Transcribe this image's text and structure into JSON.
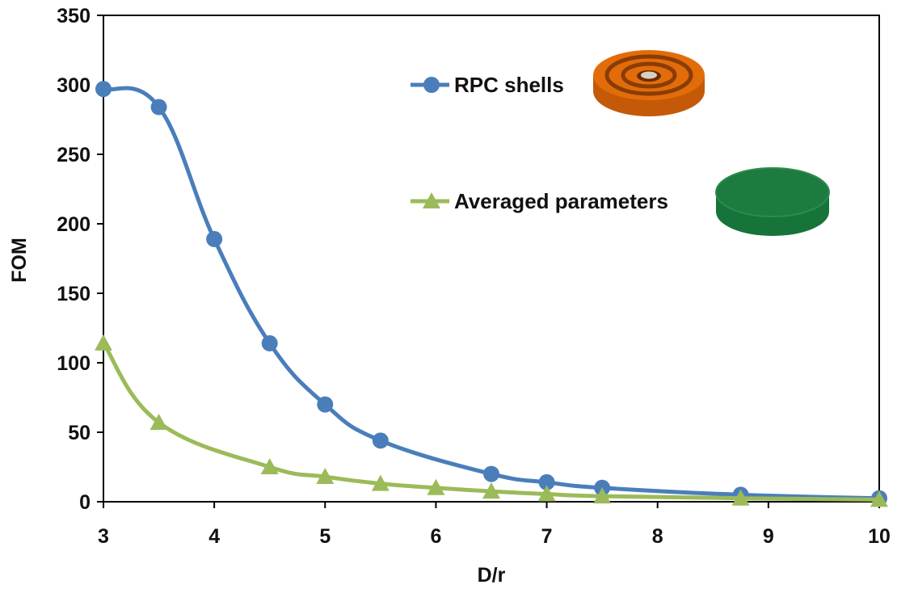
{
  "chart_data": {
    "type": "line",
    "xlabel": "D/r",
    "ylabel": "FOM",
    "xlim": [
      3,
      10
    ],
    "ylim": [
      0,
      350
    ],
    "xticks": [
      3,
      4,
      5,
      6,
      7,
      8,
      9,
      10
    ],
    "yticks": [
      0,
      50,
      100,
      150,
      200,
      250,
      300,
      350
    ],
    "grid": false,
    "legend_position": "top-right",
    "series": [
      {
        "name": "RPC shells",
        "marker": "circle",
        "color": "#4a7ebb",
        "x": [
          3,
          3.5,
          4,
          4.5,
          5,
          5.5,
          6.5,
          7,
          7.5,
          8.75,
          10
        ],
        "y": [
          297,
          284,
          189,
          114,
          70,
          44,
          20,
          14,
          10,
          5,
          2.5
        ]
      },
      {
        "name": "Averaged parameters",
        "marker": "triangle",
        "color": "#9bbb59",
        "x": [
          3,
          3.5,
          4.5,
          5,
          5.5,
          6,
          6.5,
          7,
          7.5,
          8.75,
          10
        ],
        "y": [
          114,
          57,
          25,
          18,
          13,
          10,
          7.5,
          5.5,
          4,
          2.5,
          1.5
        ]
      }
    ],
    "legend_icons": [
      "orange-ring-disk-icon",
      "green-disk-icon"
    ],
    "icon_colors": {
      "orange": "#e36c0a",
      "green": "#1e7b3f"
    }
  }
}
